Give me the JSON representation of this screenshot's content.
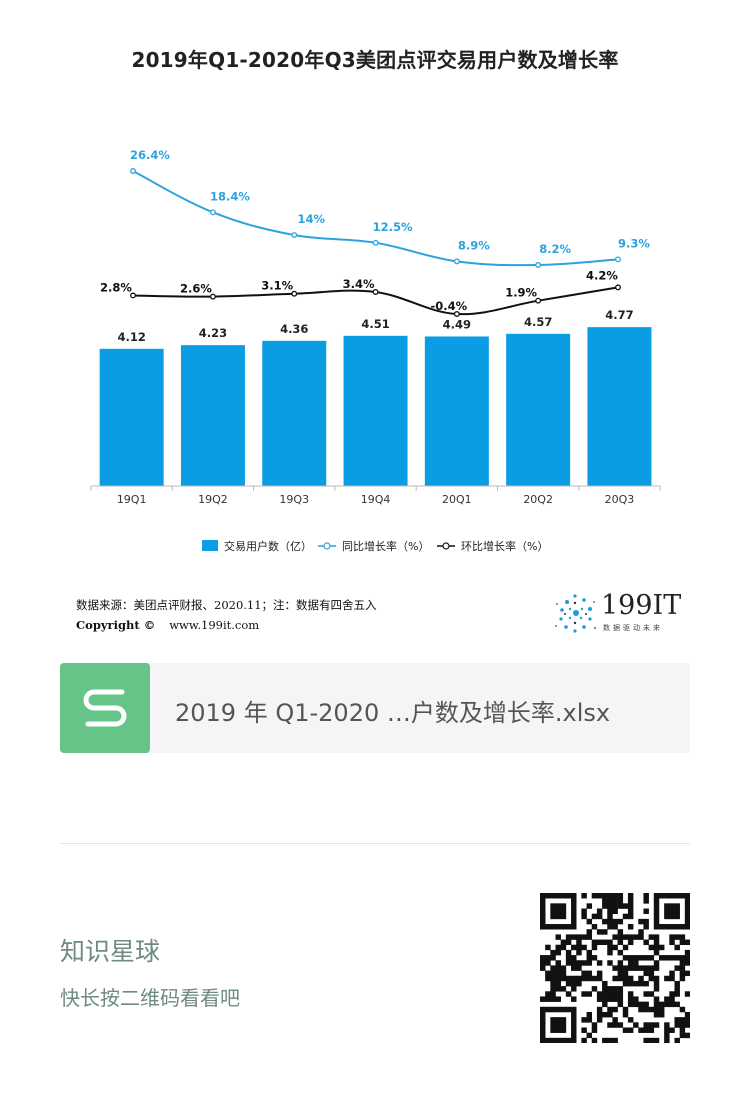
{
  "chart_title": "2019年Q1-2020年Q3美团点评交易用户数及增长率",
  "chart_data": {
    "type": "bar",
    "title": "2019年Q1-2020年Q3美团点评交易用户数及增长率",
    "categories": [
      "19Q1",
      "19Q2",
      "19Q3",
      "19Q4",
      "20Q1",
      "20Q2",
      "20Q3"
    ],
    "series": [
      {
        "name": "交易用户数（亿）",
        "type": "bar",
        "values": [
          4.12,
          4.23,
          4.36,
          4.51,
          4.49,
          4.57,
          4.77
        ],
        "labels": [
          "4.12",
          "4.23",
          "4.36",
          "4.51",
          "4.49",
          "4.57",
          "4.77"
        ],
        "color": "#0a9de3"
      },
      {
        "name": "同比增长率（%）",
        "type": "line",
        "values": [
          26.4,
          18.4,
          14,
          12.5,
          8.9,
          8.2,
          9.3
        ],
        "labels": [
          "26.4%",
          "18.4%",
          "14%",
          "12.5%",
          "8.9%",
          "8.2%",
          "9.3%"
        ],
        "color": "#2ca3df"
      },
      {
        "name": "环比增长率（%）",
        "type": "line",
        "values": [
          2.8,
          2.6,
          3.1,
          3.4,
          -0.4,
          1.9,
          4.2
        ],
        "labels": [
          "2.8%",
          "2.6%",
          "3.1%",
          "3.4%",
          "-0.4%",
          "1.9%",
          "4.2%"
        ],
        "color": "#111111"
      }
    ],
    "legend_position": "bottom",
    "grid": false
  },
  "source_text": "数据来源：美团点评财报、2020.11；注：数据有四舍五入",
  "copyright_label": "Copyright ©",
  "copyright_url": "www.199it.com",
  "logo_text": "199IT",
  "logo_tagline": "数据驱动未来",
  "file_icon_letter": "S",
  "file_name": "2019 年 Q1-2020 …户数及增长率.xlsx",
  "promo_title": "知识星球",
  "promo_subtitle": "快长按二维码看看吧"
}
